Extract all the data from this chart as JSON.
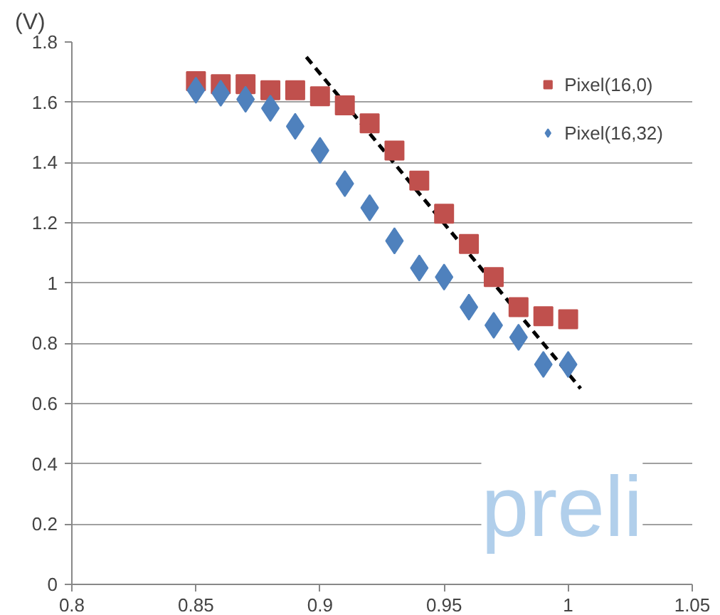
{
  "chart_data": {
    "type": "scatter",
    "ylabel": "(V)",
    "x": [
      0.85,
      0.86,
      0.87,
      0.88,
      0.89,
      0.9,
      0.91,
      0.92,
      0.93,
      0.94,
      0.95,
      0.96,
      0.97,
      0.98,
      0.99,
      1.0
    ],
    "series": [
      {
        "name": "Pixel(16,32)",
        "color": "#4f81bd",
        "marker": "diamond",
        "values": [
          1.64,
          1.63,
          1.61,
          1.58,
          1.52,
          1.44,
          1.33,
          1.25,
          1.14,
          1.05,
          1.02,
          0.92,
          0.86,
          0.82,
          0.73,
          0.73
        ]
      },
      {
        "name": "Pixel(16,0)",
        "color": "#c0504d",
        "marker": "square",
        "values": [
          1.67,
          1.66,
          1.66,
          1.64,
          1.64,
          1.62,
          1.59,
          1.53,
          1.44,
          1.34,
          1.23,
          1.13,
          1.02,
          0.92,
          0.89,
          0.88
        ]
      },
      {
        "type": "line",
        "color": "#000000",
        "line_style": "dashed",
        "marker": "none",
        "x": [
          0.8945,
          1.005
        ],
        "values": [
          1.75,
          0.65
        ]
      }
    ],
    "xlim": [
      0.8,
      1.05
    ],
    "xticks": [
      0.8,
      0.85,
      0.9,
      0.95,
      1,
      1.05
    ],
    "ylim": [
      0,
      1.8
    ],
    "yticks": [
      0,
      0.2,
      0.4,
      0.6,
      0.8,
      1,
      1.2,
      1.4,
      1.6,
      1.8
    ],
    "grid": "y",
    "legend": "top right",
    "annotations": [
      "preli"
    ]
  }
}
